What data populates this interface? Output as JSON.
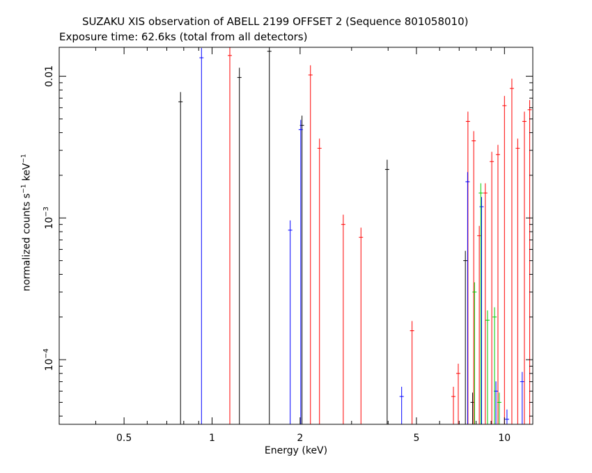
{
  "chart_data": {
    "type": "scatter",
    "title": "SUZAKU XIS observation of ABELL 2199 OFFSET 2 (Sequence 801058010)",
    "subtitle": "Exposure time: 62.6ks (total from all detectors)",
    "xlabel": "Energy (keV)",
    "ylabel": {
      "base": "normalized counts s",
      "exp1": "−1",
      "mid": " keV",
      "exp2": "−1"
    },
    "x_scale": "log",
    "y_scale": "log",
    "xlim": [
      0.3,
      12.5
    ],
    "ylim": [
      3.5e-05,
      0.016
    ],
    "x_ticks": [
      {
        "value": 0.5,
        "label": "0.5"
      },
      {
        "value": 1,
        "label": "1"
      },
      {
        "value": 2,
        "label": "2"
      },
      {
        "value": 5,
        "label": "5"
      },
      {
        "value": 10,
        "label": "10"
      }
    ],
    "y_ticks": [
      {
        "value": 0.0001,
        "base": "10",
        "exp": "−4"
      },
      {
        "value": 0.001,
        "base": "10",
        "exp": "−3"
      },
      {
        "value": 0.01,
        "label": "0.01"
      }
    ],
    "colors": {
      "series_black": "#000000",
      "series_red": "#ff0000",
      "series_blue": "#0000ff",
      "series_green": "#00cc00",
      "axes": "#000000"
    },
    "series": [
      {
        "color": "#000000",
        "points": [
          {
            "x": 0.78,
            "y": 0.0066
          },
          {
            "x": 1.24,
            "y": 0.0098
          },
          {
            "x": 1.57,
            "y": 0.015
          },
          {
            "x": 2.03,
            "y": 0.0045
          },
          {
            "x": 3.97,
            "y": 0.0022
          },
          {
            "x": 7.35,
            "y": 0.0005
          },
          {
            "x": 7.78,
            "y": 5e-05
          }
        ]
      },
      {
        "color": "#ff0000",
        "points": [
          {
            "x": 1.15,
            "y": 0.014
          },
          {
            "x": 2.17,
            "y": 0.0102
          },
          {
            "x": 2.33,
            "y": 0.0031
          },
          {
            "x": 2.81,
            "y": 0.0009
          },
          {
            "x": 3.23,
            "y": 0.00073
          },
          {
            "x": 4.83,
            "y": 0.00016
          },
          {
            "x": 6.69,
            "y": 5.5e-05
          },
          {
            "x": 6.95,
            "y": 8e-05
          },
          {
            "x": 7.5,
            "y": 0.0048
          },
          {
            "x": 7.85,
            "y": 0.0035
          },
          {
            "x": 8.2,
            "y": 0.00075
          },
          {
            "x": 8.6,
            "y": 0.0015
          },
          {
            "x": 9.05,
            "y": 0.0025
          },
          {
            "x": 9.5,
            "y": 0.0028
          },
          {
            "x": 10.0,
            "y": 0.0062
          },
          {
            "x": 10.6,
            "y": 0.0082
          },
          {
            "x": 11.1,
            "y": 0.0031
          },
          {
            "x": 11.7,
            "y": 0.0048
          },
          {
            "x": 12.2,
            "y": 0.0058
          }
        ]
      },
      {
        "color": "#0000ff",
        "points": [
          {
            "x": 0.92,
            "y": 0.0135
          },
          {
            "x": 1.85,
            "y": 0.00082
          },
          {
            "x": 2.01,
            "y": 0.0042
          },
          {
            "x": 4.45,
            "y": 5.5e-05
          },
          {
            "x": 7.48,
            "y": 0.0018
          },
          {
            "x": 8.35,
            "y": 0.0012
          },
          {
            "x": 9.35,
            "y": 6e-05
          },
          {
            "x": 10.2,
            "y": 3.8e-05
          },
          {
            "x": 11.5,
            "y": 7e-05
          }
        ]
      },
      {
        "color": "#00cc00",
        "points": [
          {
            "x": 7.9,
            "y": 0.0003
          },
          {
            "x": 8.3,
            "y": 0.0015
          },
          {
            "x": 8.75,
            "y": 0.00019
          },
          {
            "x": 9.25,
            "y": 0.0002
          },
          {
            "x": 9.6,
            "y": 5e-05
          }
        ]
      }
    ]
  }
}
